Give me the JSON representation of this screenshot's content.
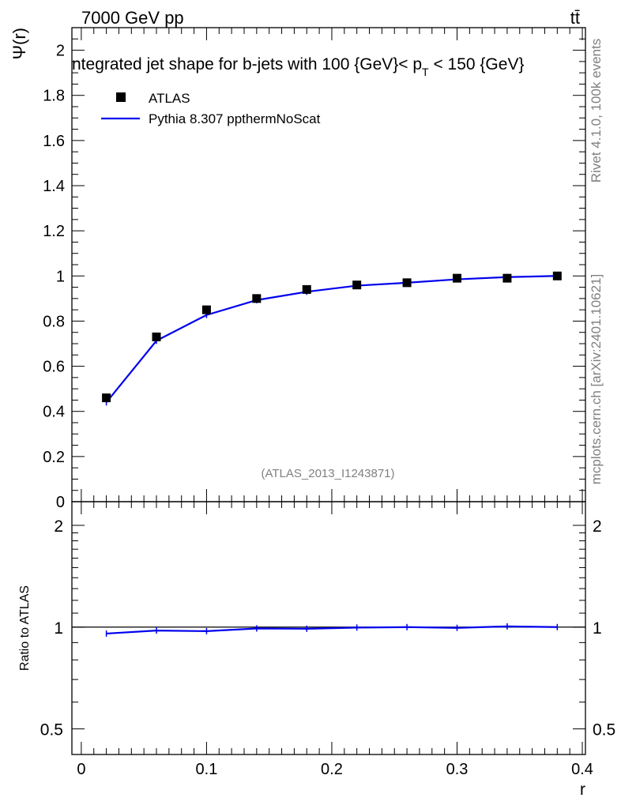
{
  "header": {
    "energy_label": "7000 GeV pp",
    "process_label": "tt̄"
  },
  "side": {
    "rivet_label": "Rivet 4.1.0,  100k events",
    "mcplots_label": "mcplots.cern.ch [arXiv:2401.10621]"
  },
  "chart_data": [
    {
      "type": "scatter",
      "panel": "main",
      "title": "ntegrated jet shape for b-jets with 100 {GeV}< p_T < 150 {GeV}",
      "title_main": "ntegrated jet shape for b-jets with 100 {GeV}< p",
      "title_sub": "T",
      "title_tail": " < 150 {GeV}",
      "ylabel": "Ψ(r)",
      "xlabel": "",
      "xlim": [
        -0.0075,
        0.4025
      ],
      "ylim": [
        0,
        2.1
      ],
      "watermark": "(ATLAS_2013_I1243871)",
      "x": [
        0.02,
        0.06,
        0.1,
        0.14,
        0.18,
        0.22,
        0.26,
        0.3,
        0.34,
        0.38
      ],
      "series": [
        {
          "name": "ATLAS",
          "style": "markers",
          "color": "#000000",
          "values": [
            0.46,
            0.73,
            0.85,
            0.9,
            0.94,
            0.96,
            0.97,
            0.99,
            0.99,
            1.0
          ]
        },
        {
          "name": "Pythia 8.307 ppthermNoScat",
          "style": "line",
          "color": "#0000ee",
          "values": [
            0.44,
            0.713,
            0.827,
            0.893,
            0.93,
            0.957,
            0.97,
            0.985,
            0.995,
            1.0
          ]
        }
      ],
      "yticks": [
        0,
        0.2,
        0.4,
        0.6,
        0.8,
        1,
        1.2,
        1.4,
        1.6,
        1.8,
        2
      ],
      "ytick_labels": [
        "0",
        "0.2",
        "0.4",
        "0.6",
        "0.8",
        "1",
        "1.2",
        "1.4",
        "1.6",
        "1.8",
        "2"
      ],
      "legend": "top-left"
    },
    {
      "type": "line",
      "panel": "ratio",
      "ylabel": "Ratio to ATLAS",
      "xlabel": "r",
      "xlim": [
        -0.0075,
        0.4025
      ],
      "ylim": [
        0.42,
        2.35
      ],
      "log_y": true,
      "x": [
        0.02,
        0.06,
        0.1,
        0.14,
        0.18,
        0.22,
        0.26,
        0.3,
        0.34,
        0.38
      ],
      "series": [
        {
          "name": "Pythia 8.307 ppthermNoScat",
          "color": "#0000ee",
          "values": [
            0.957,
            0.977,
            0.973,
            0.991,
            0.989,
            0.997,
            1.0,
            0.995,
            1.005,
            1.0
          ]
        }
      ],
      "reference": 1,
      "yticks": [
        0.5,
        1,
        2
      ],
      "ytick_labels": [
        "0.5",
        "1",
        "2"
      ],
      "xticks": [
        0,
        0.1,
        0.2,
        0.3,
        0.4
      ],
      "xtick_labels": [
        "0",
        "0.1",
        "0.2",
        "0.3",
        "0.4"
      ]
    }
  ]
}
